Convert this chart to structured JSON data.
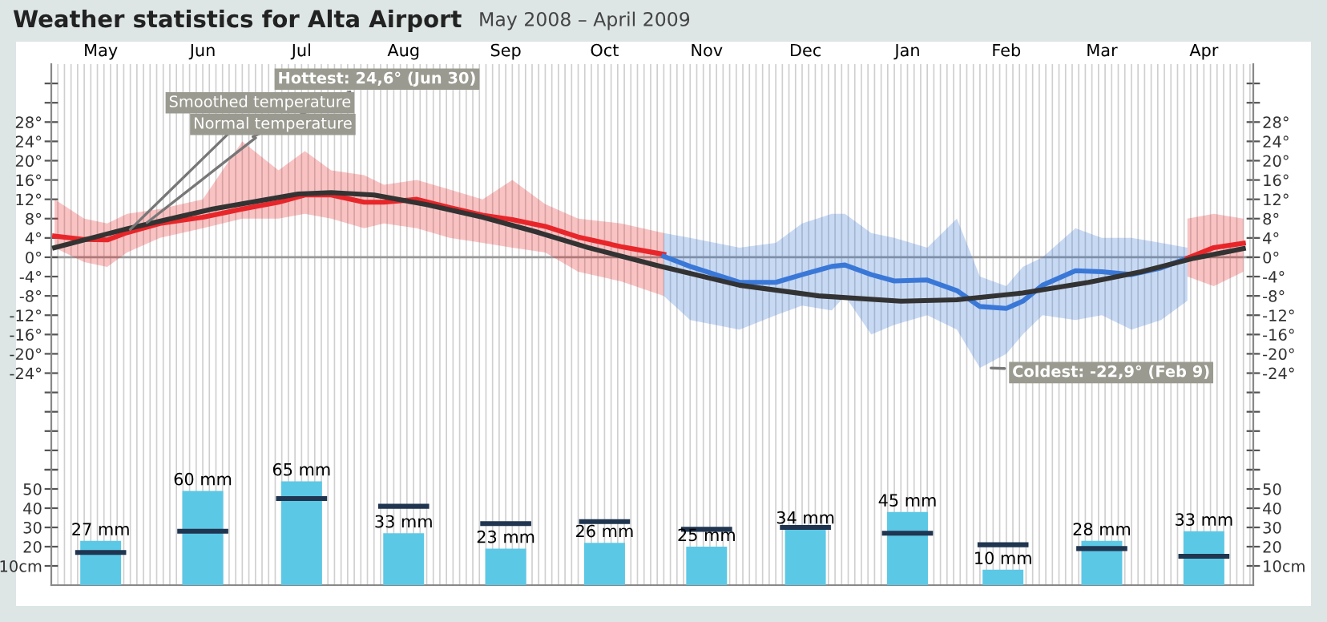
{
  "chart_data": [
    {
      "type": "line",
      "title": "Weather statistics for Alta Airport",
      "subtitle": "May 2008 – April 2009",
      "xlim": [
        "2008-05-01",
        "2009-05-01"
      ],
      "xticks": [
        {
          "value": "2008-05-16",
          "label": "May"
        },
        {
          "value": "2008-06-16",
          "label": "Jun"
        },
        {
          "value": "2008-07-16",
          "label": "Jul"
        },
        {
          "value": "2008-08-16",
          "label": "Aug"
        },
        {
          "value": "2008-09-16",
          "label": "Sep"
        },
        {
          "value": "2008-10-16",
          "label": "Oct"
        },
        {
          "value": "2008-11-16",
          "label": "Nov"
        },
        {
          "value": "2008-12-16",
          "label": "Dec"
        },
        {
          "value": "2009-01-16",
          "label": "Jan"
        },
        {
          "value": "2009-02-15",
          "label": "Feb"
        },
        {
          "value": "2009-03-16",
          "label": "Mar"
        },
        {
          "value": "2009-04-16",
          "label": "Apr"
        }
      ],
      "ylim": [
        -44,
        40
      ],
      "yticks": [
        {
          "value": -44,
          "label": null
        },
        {
          "value": -40,
          "label": null
        },
        {
          "value": -36,
          "label": null
        },
        {
          "value": -32,
          "label": null
        },
        {
          "value": -28,
          "label": null
        },
        {
          "value": -24,
          "label": "-24°"
        },
        {
          "value": -20,
          "label": "-20°"
        },
        {
          "value": -16,
          "label": "-16°"
        },
        {
          "value": -12,
          "label": "-12°"
        },
        {
          "value": -8,
          "label": "-8°"
        },
        {
          "value": -4,
          "label": "-4°"
        },
        {
          "value": 0,
          "label": "0°"
        },
        {
          "value": 4,
          "label": "4°"
        },
        {
          "value": 8,
          "label": "8°"
        },
        {
          "value": 12,
          "label": "12°"
        },
        {
          "value": 16,
          "label": "16°"
        },
        {
          "value": 20,
          "label": "20°"
        },
        {
          "value": 24,
          "label": "24°"
        },
        {
          "value": 28,
          "label": "28°"
        },
        {
          "value": 32,
          "label": null
        },
        {
          "value": 36,
          "label": null
        }
      ],
      "y2lim": [
        -44,
        40
      ],
      "y2ticks": [
        {
          "value": -44,
          "label": null
        },
        {
          "value": -40,
          "label": null
        },
        {
          "value": -36,
          "label": null
        },
        {
          "value": -32,
          "label": null
        },
        {
          "value": -28,
          "label": null
        },
        {
          "value": -24,
          "label": "-24°"
        },
        {
          "value": -20,
          "label": "-20°"
        },
        {
          "value": -16,
          "label": "-16°"
        },
        {
          "value": -12,
          "label": "-12°"
        },
        {
          "value": -8,
          "label": "-8°"
        },
        {
          "value": -4,
          "label": "-4°"
        },
        {
          "value": 0,
          "label": "0°"
        },
        {
          "value": 4,
          "label": "4°"
        },
        {
          "value": 8,
          "label": "8°"
        },
        {
          "value": 12,
          "label": "12°"
        },
        {
          "value": 16,
          "label": "16°"
        },
        {
          "value": 20,
          "label": "20°"
        },
        {
          "value": 24,
          "label": "24°"
        },
        {
          "value": 28,
          "label": "28°"
        },
        {
          "value": 32,
          "label": null
        },
        {
          "value": 36,
          "label": null
        }
      ],
      "grid": "x",
      "marker": "none",
      "line_style": "solid",
      "ref_lines": [
        {
          "axis": "y",
          "value": 0,
          "color": "#999999"
        }
      ],
      "series": [
        {
          "color": "#e8262a",
          "x": [
            "2008-05-02",
            "2008-05-11",
            "2008-05-18",
            "2008-05-24",
            "2008-06-03",
            "2008-06-16",
            "2008-06-28",
            "2008-07-09",
            "2008-07-17",
            "2008-07-25",
            "2008-08-04",
            "2008-08-10",
            "2008-08-20",
            "2008-08-30",
            "2008-09-09",
            "2008-09-18",
            "2008-09-28",
            "2008-10-08",
            "2008-10-21",
            "2008-11-03"
          ],
          "values": [
            4.4,
            3.7,
            3.6,
            5.1,
            7,
            8.3,
            10,
            11.4,
            12.9,
            12.9,
            11.4,
            11.4,
            12,
            10.3,
            8.7,
            7.8,
            6.4,
            4.2,
            2.2,
            0.6
          ],
          "upper": [
            12,
            8,
            7,
            9,
            10,
            12,
            24,
            18,
            22,
            18,
            17,
            15,
            16,
            14,
            12,
            16,
            11,
            8,
            7,
            5
          ],
          "lower": [
            2,
            -1,
            -2,
            1,
            4,
            6,
            8,
            8,
            9,
            8,
            6,
            7,
            6,
            4,
            3,
            2,
            1,
            -3,
            -5,
            -8
          ]
        },
        {
          "color": "#3a78d8",
          "x": [
            "2008-11-03",
            "2008-11-11",
            "2008-11-26",
            "2008-12-07",
            "2008-12-15",
            "2008-12-24",
            "2008-12-28",
            "2009-01-05",
            "2009-01-12",
            "2009-01-22",
            "2009-01-31",
            "2009-02-07",
            "2009-02-15",
            "2009-02-20",
            "2009-02-26",
            "2009-03-08",
            "2009-03-16",
            "2009-03-25",
            "2009-04-03",
            "2009-04-11"
          ],
          "values": [
            0.2,
            -1.9,
            -5.2,
            -5.2,
            -3.6,
            -1.9,
            -1.6,
            -3.6,
            -4.9,
            -4.7,
            -6.9,
            -10.2,
            -10.6,
            -9.1,
            -5.8,
            -2.8,
            -3,
            -3.6,
            -2.2,
            -0.2
          ],
          "upper": [
            5,
            4,
            2,
            3,
            7,
            9,
            9,
            5,
            4,
            2,
            8,
            -4,
            -6,
            -2,
            0,
            6,
            4,
            4,
            3,
            2
          ],
          "lower": [
            -8,
            -13,
            -15,
            -12,
            -10,
            -11,
            -8,
            -16,
            -14,
            -12,
            -15,
            -22.9,
            -20,
            -16,
            -12,
            -13,
            -12,
            -15,
            -13,
            -9
          ]
        },
        {
          "color": "#e8262a",
          "x": [
            "2009-04-11",
            "2009-04-19",
            "2009-04-28"
          ],
          "values": [
            -0.2,
            2,
            2.9
          ],
          "upper": [
            8,
            9,
            8
          ],
          "lower": [
            -4,
            -6,
            -3
          ]
        },
        {
          "color": "#333333",
          "x": [
            "2008-05-02",
            "2008-05-24",
            "2008-06-19",
            "2008-07-15",
            "2008-07-25",
            "2008-08-07",
            "2008-08-23",
            "2008-09-09",
            "2008-09-25",
            "2008-10-11",
            "2008-11-01",
            "2008-11-26",
            "2008-12-20",
            "2009-01-14",
            "2009-01-31",
            "2009-02-20",
            "2009-03-12",
            "2009-03-28",
            "2009-04-13",
            "2009-04-28"
          ],
          "values": [
            2,
            5.9,
            10,
            13.1,
            13.4,
            12.9,
            10.9,
            8.3,
            5.3,
            2,
            -1.7,
            -5.8,
            -8,
            -9.1,
            -8.8,
            -7.4,
            -5.2,
            -3,
            -0.2,
            1.8
          ]
        }
      ],
      "annotations": [
        {
          "text": "Hottest: 24,6° (Jun 30)",
          "x": "2008-06-30",
          "y": 24.6
        },
        {
          "text": "Coldest: -22,9° (Feb 9)",
          "x": "2009-02-09",
          "y": -22.9
        },
        {
          "text": "Smoothed temperature",
          "x": "2008-05-24",
          "y": 5.1
        },
        {
          "text": "Normal temperature",
          "x": "2008-05-29",
          "y": 6.6
        }
      ]
    },
    {
      "type": "bar",
      "xlim": [
        "2008-05-01",
        "2009-05-01"
      ],
      "x": [
        "2008-05-16",
        "2008-06-16",
        "2008-07-16",
        "2008-08-16",
        "2008-09-16",
        "2008-10-16",
        "2008-11-16",
        "2008-12-16",
        "2009-01-16",
        "2009-02-14",
        "2009-03-16",
        "2009-04-16"
      ],
      "ylim": [
        0,
        60
      ],
      "yticks": [
        {
          "value": 10,
          "label": "10cm"
        },
        20,
        30,
        40,
        50,
        {
          "value": 60,
          "label": null
        }
      ],
      "y2lim": [
        0,
        60
      ],
      "y2ticks": [
        {
          "value": 10,
          "label": "10cm"
        },
        20,
        30,
        40,
        50,
        {
          "value": 60,
          "label": null
        }
      ],
      "tick_labels": "y",
      "grid": "x",
      "series": [
        {
          "color": "#5bc8e6",
          "values": [
            23,
            49,
            54,
            27,
            19,
            22,
            20,
            29,
            38,
            8,
            23,
            28
          ]
        },
        {
          "type": "line",
          "color": "#1f3550",
          "x": [
            "2008-05-09",
            "2008-05-23",
            "2008-05-24",
            "2008-06-09",
            "2008-06-23",
            "2008-06-24",
            "2008-07-09",
            "2008-07-23",
            "2008-07-24",
            "2008-08-09",
            "2008-08-23",
            "2008-08-24",
            "2008-09-09",
            "2008-09-23",
            "2008-09-24",
            "2008-10-09",
            "2008-10-23",
            "2008-10-24",
            "2008-11-09",
            "2008-11-23",
            "2008-11-24",
            "2008-12-09",
            "2008-12-23",
            "2008-12-24",
            "2009-01-09",
            "2009-01-23",
            "2009-01-24",
            "2009-02-07",
            "2009-02-21",
            "2009-02-22",
            "2009-03-09",
            "2009-03-23",
            "2009-03-24",
            "2009-04-09",
            "2009-04-23"
          ],
          "values": [
            17,
            17,
            null,
            28,
            28,
            null,
            45,
            45,
            null,
            41,
            41,
            null,
            32,
            32,
            null,
            33,
            33,
            null,
            29,
            29,
            null,
            30,
            30,
            null,
            27,
            27,
            null,
            21,
            21,
            null,
            19,
            19,
            null,
            15,
            15
          ]
        }
      ],
      "annotations": [
        {
          "text": "27 mm",
          "x": "2008-05-16",
          "y": 23
        },
        {
          "text": "60 mm",
          "x": "2008-06-16",
          "y": 49
        },
        {
          "text": "65 mm",
          "x": "2008-07-16",
          "y": 54
        },
        {
          "text": "33 mm",
          "x": "2008-08-16",
          "y": 27
        },
        {
          "text": "23 mm",
          "x": "2008-09-16",
          "y": 19
        },
        {
          "text": "26 mm",
          "x": "2008-10-16",
          "y": 22
        },
        {
          "text": "25 mm",
          "x": "2008-11-16",
          "y": 20
        },
        {
          "text": "34 mm",
          "x": "2008-12-16",
          "y": 29
        },
        {
          "text": "45 mm",
          "x": "2009-01-16",
          "y": 38
        },
        {
          "text": "10 mm",
          "x": "2009-02-14",
          "y": 8
        },
        {
          "text": "28 mm",
          "x": "2009-03-16",
          "y": 23
        },
        {
          "text": "33 mm",
          "x": "2009-04-16",
          "y": 28
        }
      ]
    }
  ]
}
